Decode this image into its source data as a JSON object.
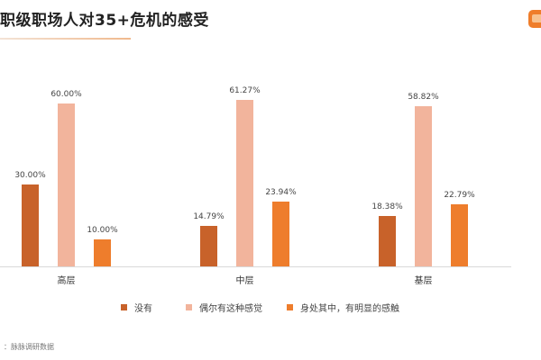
{
  "header": {
    "title": "职级职场人对35+危机的感受",
    "logo_icon": "brand-logo-icon"
  },
  "colors": {
    "series_1": "#c8622a",
    "series_2": "#f2b49c",
    "series_3": "#ee7d2c",
    "axis": "#d9d9d9"
  },
  "chart_data": {
    "type": "bar",
    "title": "职级职场人对35+危机的感受",
    "categories": [
      "高层",
      "中层",
      "基层"
    ],
    "series": [
      {
        "name": "没有",
        "values": [
          30.0,
          14.79,
          18.38
        ],
        "labels": [
          "30.00%",
          "14.79%",
          "18.38%"
        ],
        "color": "#c8622a"
      },
      {
        "name": "偶尔有这种感觉",
        "values": [
          60.0,
          61.27,
          58.82
        ],
        "labels": [
          "60.00%",
          "61.27%",
          "58.82%"
        ],
        "color": "#f2b49c"
      },
      {
        "name": "身处其中，有明显的感触",
        "values": [
          10.0,
          23.94,
          22.79
        ],
        "labels": [
          "10.00%",
          "23.94%",
          "22.79%"
        ],
        "color": "#ee7d2c"
      }
    ],
    "xlabel": "",
    "ylabel": "",
    "ylim": [
      0,
      65
    ],
    "grid": false,
    "legend_position": "bottom",
    "data_labels": true
  },
  "legend": {
    "items": [
      {
        "label": "没有"
      },
      {
        "label": "偶尔有这种感觉"
      },
      {
        "label": "身处其中，有明显的感触"
      }
    ]
  },
  "footer": {
    "source": "：脉脉调研数据"
  }
}
